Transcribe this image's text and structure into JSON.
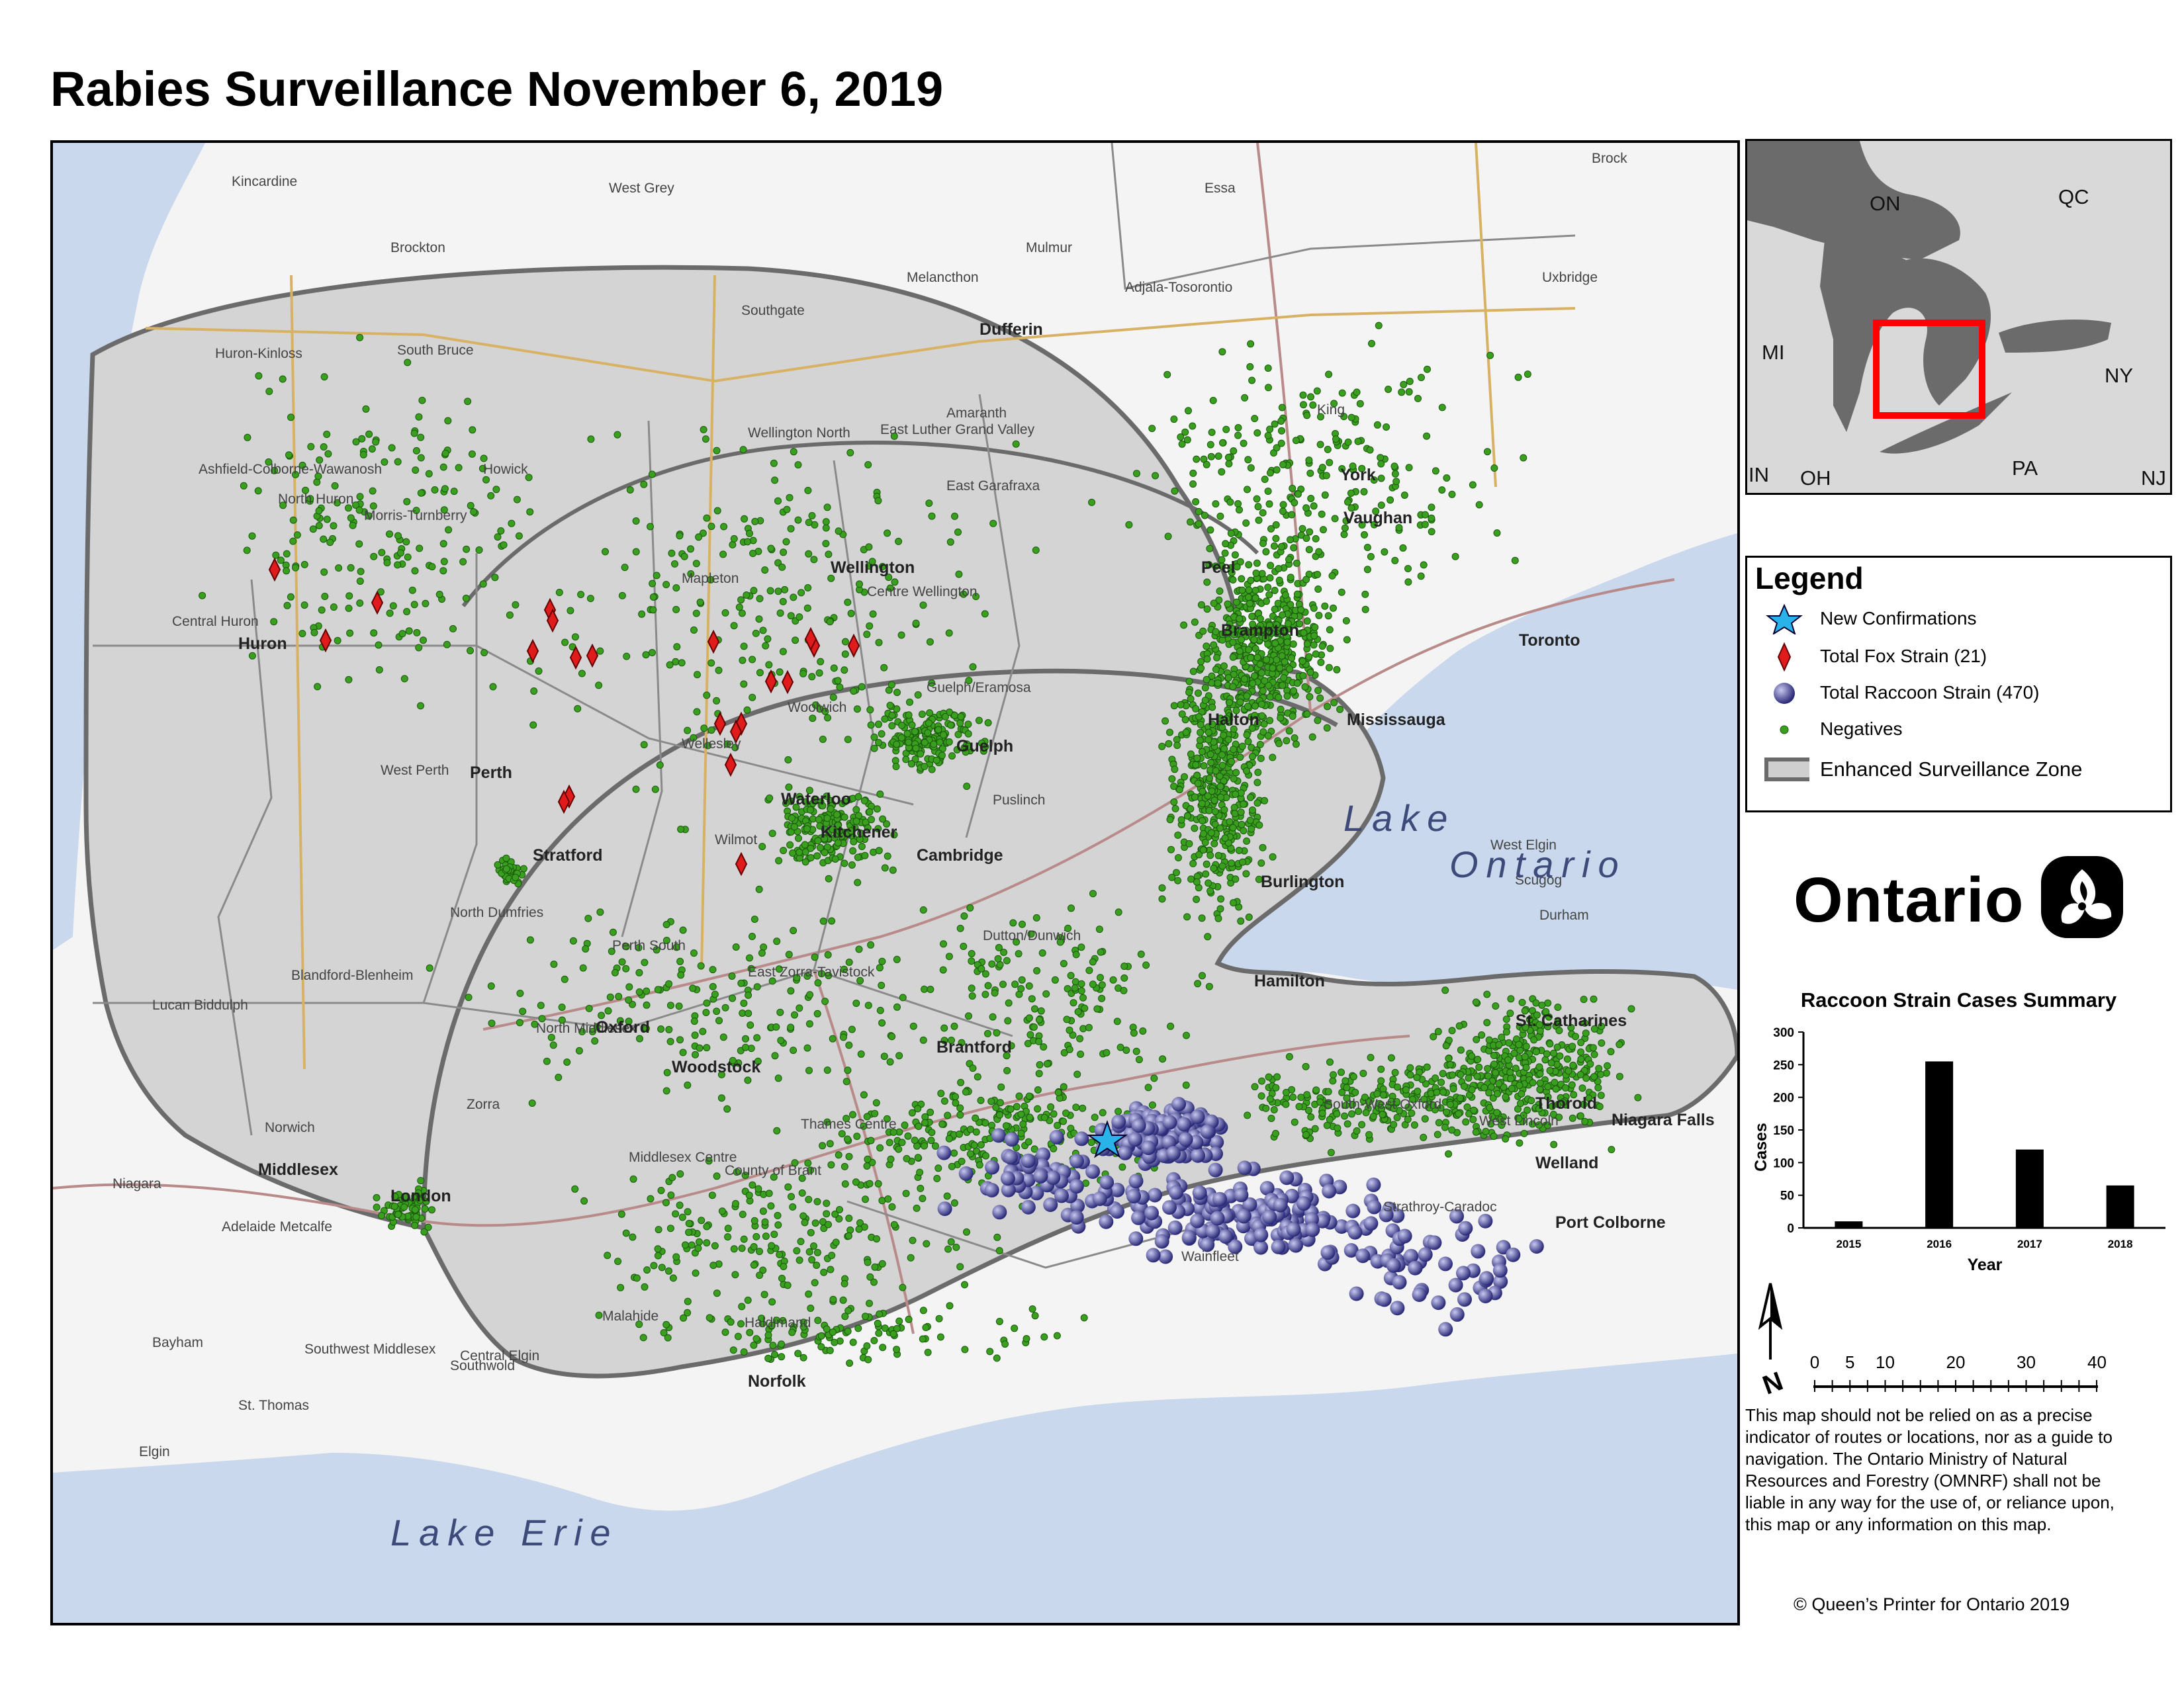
{
  "title": "Rabies Surveillance November 6, 2019",
  "map": {
    "lakes": {
      "ontario_1": "Lake",
      "ontario_2": "Ontario",
      "erie": "Lake Erie"
    },
    "cities_bold": [
      "Brampton",
      "Toronto",
      "Mississauga",
      "Guelph",
      "Waterloo",
      "Kitchener",
      "Cambridge",
      "Stratford",
      "Brantford",
      "Woodstock",
      "Burlington",
      "Hamilton",
      "London",
      "St. Catharines",
      "Welland",
      "Port Colborne",
      "Niagara Falls",
      "Vaughan",
      "Dufferin",
      "Wellington",
      "Peel",
      "Halton",
      "York",
      "Huron",
      "Perth",
      "Oxford",
      "Middlesex",
      "Thorold",
      "Norfolk"
    ],
    "places": [
      "Kincardine",
      "West Grey",
      "Essa",
      "Brock",
      "Brockton",
      "Mulmur",
      "Adjala-Tosorontio",
      "Melancthon",
      "Uxbridge",
      "Southgate",
      "Huron-Kinloss",
      "South Bruce",
      "Amaranth",
      "King",
      "Wellington North",
      "East Luther Grand Valley",
      "Ashfield-Colborne-Wawanosh",
      "Howick",
      "East Garafraxa",
      "North Huron",
      "Morris-Turnberry",
      "Mapleton",
      "Centre Wellington",
      "Central Huron",
      "Guelph/Eramosa",
      "Woolwich",
      "Wellesley",
      "West Perth",
      "Puslinch",
      "Wilmot",
      "North Dumfries",
      "Perth South",
      "East Zorra-Tavistock",
      "Blandford-Blenheim",
      "Lucan Biddulph",
      "North Middlesex",
      "Zorra",
      "Thames Centre",
      "County of Brant",
      "Norwich",
      "Middlesex Centre",
      "South-West Oxford",
      "West Lincoln",
      "Niagara",
      "Adelaide Metcalfe",
      "Strathroy-Caradoc",
      "Wainfleet",
      "Haldimand",
      "Malahide",
      "Bayham",
      "Southwest Middlesex",
      "Southwold",
      "Central Elgin",
      "St. Thomas",
      "Elgin",
      "Dutton/Dunwich",
      "West Elgin",
      "Scugog",
      "Durham"
    ]
  },
  "inset": {
    "labels": [
      "ON",
      "QC",
      "MI",
      "NY",
      "PA",
      "OH",
      "IN",
      "NJ"
    ]
  },
  "legend": {
    "title": "Legend",
    "items": [
      {
        "label": "New Confirmations",
        "icon": "star-icon",
        "color": "#2ab3e8"
      },
      {
        "label": "Total Fox Strain (21)",
        "icon": "diamond-icon",
        "color": "#e01b1b"
      },
      {
        "label": "Total Raccoon Strain (470)",
        "icon": "sphere-icon",
        "color": "#3b3b8c"
      },
      {
        "label": "Negatives",
        "icon": "dot-icon",
        "color": "#3a9e1e"
      },
      {
        "label": "Enhanced Surveillance Zone",
        "icon": "zone-swatch",
        "color": "#cfcfcf"
      }
    ]
  },
  "logo": {
    "wordmark": "Ontario",
    "icon": "trillium-icon"
  },
  "chart_data": {
    "type": "bar",
    "title": "Raccoon Strain Cases Summary",
    "categories": [
      "2015",
      "2016",
      "2017",
      "2018"
    ],
    "values": [
      10,
      255,
      120,
      65
    ],
    "xlabel": "Year",
    "ylabel": "Cases",
    "ylim": [
      0,
      300
    ],
    "yticks": [
      0,
      50,
      100,
      150,
      200,
      250,
      300
    ],
    "grid": false,
    "color": "#000000"
  },
  "scale": {
    "ticks": [
      "0",
      "5",
      "10",
      "20",
      "30",
      "40 km"
    ]
  },
  "north_arrow": "N",
  "disclaimer": "This map should not be relied on as a precise indicator of routes or locations, nor as a guide to navigation. The Ontario Ministry of Natural Resources and Forestry (OMNRF) shall not be liable in any way for the use of, or reliance upon, this map or any information on this map.",
  "copyright": "© Queen’s Printer for Ontario 2019",
  "colors": {
    "lake": "#c9d8ec",
    "land": "#f4f4f4",
    "zone": "#d4d4d4",
    "inset_land": "#6b6b6b",
    "inset_bg": "#d9d9d9",
    "inset_box": "#ff0000"
  }
}
